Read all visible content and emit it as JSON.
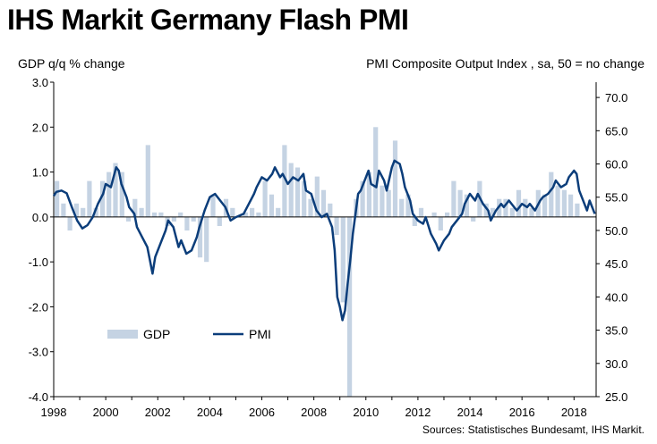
{
  "header": {
    "title": "IHS Markit Germany Flash PMI",
    "left_axis_label": "GDP q/q % change",
    "right_axis_label": "PMI Composite  Output Index  , sa, 50 = no change"
  },
  "footer": {
    "source": "Sources: Statistisches Bundesamt, IHS Markit."
  },
  "colors": {
    "gdp_bar": "#c5d3e3",
    "pmi_line": "#0b3d7a",
    "axis": "#000000"
  },
  "legend": {
    "gdp": "GDP",
    "pmi": "PMI"
  },
  "chart_data": {
    "type": "bar+line",
    "x_ticks": [
      "1998",
      "2000",
      "2002",
      "2004",
      "2006",
      "2008",
      "2010",
      "2012",
      "2014",
      "2016",
      "2018"
    ],
    "y_left_ticks": [
      "3.0",
      "2.0",
      "1.0",
      "0.0",
      "-1.0",
      "-2.0",
      "-3.0",
      "-4.0"
    ],
    "y_right_ticks": [
      "70.0",
      "65.0",
      "60.0",
      "55.0",
      "50.0",
      "45.0",
      "40.0",
      "35.0",
      "30.0",
      "25.0"
    ],
    "ylim_left": [
      -4,
      3
    ],
    "ylim_right": [
      25,
      72.3
    ],
    "xlim": [
      1998.0,
      2018.85
    ],
    "series": [
      {
        "name": "GDP",
        "axis": "left",
        "kind": "bar",
        "start": 1998.0,
        "step": 0.25,
        "values": [
          0.8,
          0.3,
          -0.3,
          0.3,
          0.2,
          0.8,
          0.2,
          0.8,
          1.0,
          1.2,
          1.0,
          -0.1,
          0.4,
          0.2,
          1.6,
          0.1,
          0.1,
          -0.2,
          -0.1,
          0.1,
          -0.3,
          -0.1,
          -0.9,
          -1.0,
          0.5,
          -0.2,
          0.4,
          0.2,
          0.0,
          0.1,
          0.2,
          0.1,
          0.8,
          0.5,
          0.2,
          1.6,
          1.2,
          1.1,
          0.8,
          0.4,
          0.9,
          0.6,
          0.3,
          -0.4,
          -1.9,
          -4.0,
          0.4,
          0.8,
          1.0,
          2.0,
          0.7,
          0.6,
          1.7,
          0.4,
          0.5,
          -0.2,
          0.2,
          0.0,
          0.1,
          -0.3,
          0.1,
          0.8,
          0.6,
          0.5,
          -0.1,
          0.8,
          0.3,
          0.2,
          0.4,
          0.4,
          0.2,
          0.6,
          0.4,
          0.2,
          0.6,
          0.5,
          1.0,
          0.7,
          0.6,
          0.5,
          0.3
        ]
      },
      {
        "name": "PMI",
        "axis": "right",
        "kind": "line",
        "points": [
          [
            1998.0,
            55.2
          ],
          [
            1998.1,
            55.8
          ],
          [
            1998.3,
            56.0
          ],
          [
            1998.5,
            55.6
          ],
          [
            1998.7,
            53.5
          ],
          [
            1998.9,
            51.5
          ],
          [
            1999.1,
            50.3
          ],
          [
            1999.3,
            50.8
          ],
          [
            1999.5,
            52.0
          ],
          [
            1999.7,
            54.0
          ],
          [
            1999.9,
            55.5
          ],
          [
            2000.0,
            57.0
          ],
          [
            2000.2,
            56.5
          ],
          [
            2000.3,
            58.0
          ],
          [
            2000.4,
            59.5
          ],
          [
            2000.5,
            59.0
          ],
          [
            2000.6,
            57.0
          ],
          [
            2000.8,
            55.0
          ],
          [
            2000.9,
            53.5
          ],
          [
            2001.1,
            52.5
          ],
          [
            2001.2,
            50.5
          ],
          [
            2001.4,
            49.0
          ],
          [
            2001.6,
            47.5
          ],
          [
            2001.7,
            45.5
          ],
          [
            2001.8,
            43.5
          ],
          [
            2001.9,
            46.0
          ],
          [
            2002.1,
            48.0
          ],
          [
            2002.3,
            50.0
          ],
          [
            2002.4,
            51.5
          ],
          [
            2002.6,
            50.5
          ],
          [
            2002.8,
            47.5
          ],
          [
            2002.9,
            48.5
          ],
          [
            2003.1,
            46.5
          ],
          [
            2003.3,
            47.0
          ],
          [
            2003.5,
            49.0
          ],
          [
            2003.6,
            50.5
          ],
          [
            2003.8,
            53.0
          ],
          [
            2004.0,
            55.0
          ],
          [
            2004.2,
            55.5
          ],
          [
            2004.4,
            54.5
          ],
          [
            2004.6,
            53.5
          ],
          [
            2004.8,
            51.5
          ],
          [
            2005.0,
            52.0
          ],
          [
            2005.3,
            52.5
          ],
          [
            2005.5,
            54.0
          ],
          [
            2005.7,
            55.5
          ],
          [
            2005.8,
            56.5
          ],
          [
            2006.0,
            58.0
          ],
          [
            2006.2,
            57.5
          ],
          [
            2006.4,
            58.5
          ],
          [
            2006.5,
            59.5
          ],
          [
            2006.7,
            58.0
          ],
          [
            2006.8,
            58.5
          ],
          [
            2007.0,
            57.0
          ],
          [
            2007.2,
            58.0
          ],
          [
            2007.4,
            57.5
          ],
          [
            2007.6,
            58.5
          ],
          [
            2007.7,
            56.0
          ],
          [
            2007.9,
            55.5
          ],
          [
            2008.1,
            53.0
          ],
          [
            2008.3,
            52.0
          ],
          [
            2008.5,
            52.5
          ],
          [
            2008.7,
            50.5
          ],
          [
            2008.8,
            47.0
          ],
          [
            2008.9,
            40.0
          ],
          [
            2009.0,
            38.5
          ],
          [
            2009.1,
            36.5
          ],
          [
            2009.2,
            38.0
          ],
          [
            2009.3,
            42.0
          ],
          [
            2009.4,
            45.5
          ],
          [
            2009.5,
            49.5
          ],
          [
            2009.6,
            52.5
          ],
          [
            2009.7,
            55.5
          ],
          [
            2009.8,
            56.0
          ],
          [
            2010.0,
            58.0
          ],
          [
            2010.1,
            59.0
          ],
          [
            2010.2,
            57.0
          ],
          [
            2010.4,
            56.5
          ],
          [
            2010.5,
            59.0
          ],
          [
            2010.7,
            57.5
          ],
          [
            2010.8,
            56.0
          ],
          [
            2011.0,
            59.5
          ],
          [
            2011.1,
            60.5
          ],
          [
            2011.3,
            60.0
          ],
          [
            2011.4,
            58.5
          ],
          [
            2011.5,
            56.5
          ],
          [
            2011.7,
            54.5
          ],
          [
            2011.8,
            52.5
          ],
          [
            2012.0,
            51.5
          ],
          [
            2012.2,
            51.0
          ],
          [
            2012.3,
            52.0
          ],
          [
            2012.5,
            49.5
          ],
          [
            2012.7,
            48.0
          ],
          [
            2012.8,
            47.0
          ],
          [
            2013.0,
            48.5
          ],
          [
            2013.2,
            49.5
          ],
          [
            2013.3,
            50.5
          ],
          [
            2013.5,
            51.5
          ],
          [
            2013.7,
            52.5
          ],
          [
            2013.8,
            54.0
          ],
          [
            2014.0,
            55.5
          ],
          [
            2014.2,
            54.5
          ],
          [
            2014.3,
            55.5
          ],
          [
            2014.5,
            54.0
          ],
          [
            2014.7,
            53.0
          ],
          [
            2014.8,
            51.5
          ],
          [
            2015.0,
            53.0
          ],
          [
            2015.2,
            54.0
          ],
          [
            2015.3,
            53.5
          ],
          [
            2015.5,
            54.5
          ],
          [
            2015.7,
            53.5
          ],
          [
            2015.8,
            53.0
          ],
          [
            2016.0,
            54.0
          ],
          [
            2016.2,
            53.5
          ],
          [
            2016.3,
            54.0
          ],
          [
            2016.5,
            53.0
          ],
          [
            2016.7,
            54.5
          ],
          [
            2016.8,
            55.0
          ],
          [
            2017.0,
            55.5
          ],
          [
            2017.2,
            56.5
          ],
          [
            2017.3,
            57.5
          ],
          [
            2017.5,
            56.5
          ],
          [
            2017.7,
            57.0
          ],
          [
            2017.8,
            58.0
          ],
          [
            2018.0,
            59.0
          ],
          [
            2018.1,
            58.5
          ],
          [
            2018.2,
            56.0
          ],
          [
            2018.3,
            55.0
          ],
          [
            2018.5,
            53.0
          ],
          [
            2018.6,
            54.5
          ],
          [
            2018.8,
            52.5
          ]
        ]
      }
    ]
  }
}
